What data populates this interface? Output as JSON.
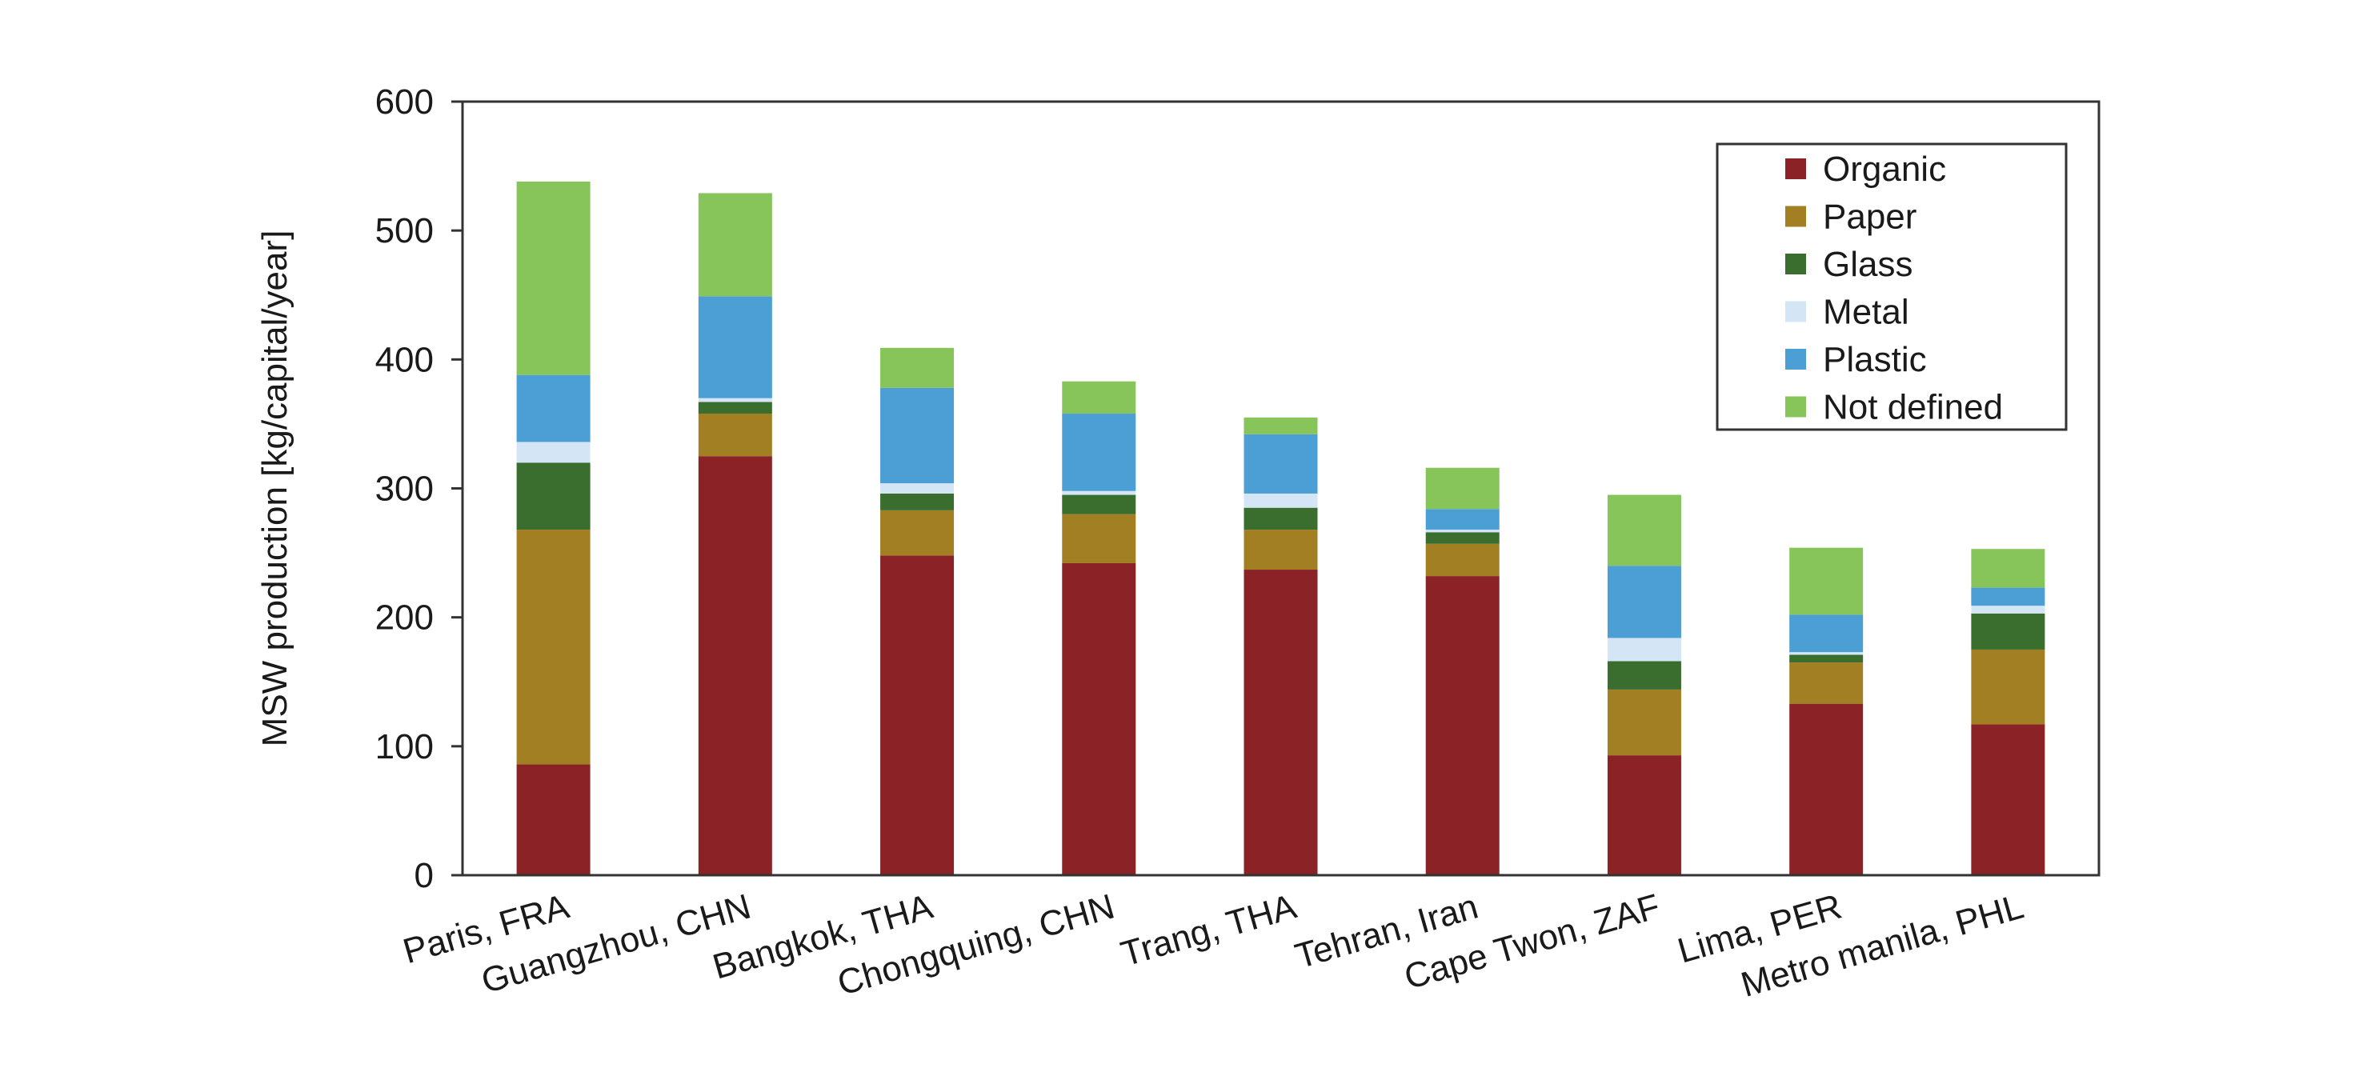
{
  "chart_data": {
    "type": "bar",
    "stacked": true,
    "title": "",
    "xlabel": "",
    "ylabel": "MSW production [kg/capital/year]",
    "ylim": [
      0,
      600
    ],
    "yticks": [
      0,
      100,
      200,
      300,
      400,
      500,
      600
    ],
    "grid": false,
    "legend_position": "top-right",
    "categories": [
      "Paris, FRA",
      "Guangzhou, CHN",
      "Bangkok, THA",
      "Chongquing, CHN",
      "Trang, THA",
      "Tehran, Iran",
      "Cape Twon, ZAF",
      "Lima, PER",
      "Metro manila, PHL"
    ],
    "series": [
      {
        "name": "Organic",
        "color": "#8b2226",
        "values": [
          86,
          325,
          248,
          242,
          237,
          232,
          93,
          133,
          117
        ]
      },
      {
        "name": "Paper",
        "color": "#a37f24",
        "values": [
          182,
          33,
          35,
          38,
          31,
          25,
          51,
          32,
          58
        ]
      },
      {
        "name": "Glass",
        "color": "#3a6e2f",
        "values": [
          52,
          9,
          13,
          15,
          17,
          9,
          22,
          6,
          28
        ]
      },
      {
        "name": "Metal",
        "color": "#d4e6f5",
        "values": [
          16,
          3,
          8,
          3,
          11,
          2,
          18,
          2,
          6
        ]
      },
      {
        "name": "Plastic",
        "color": "#4b9fd4",
        "values": [
          52,
          79,
          74,
          60,
          46,
          16,
          56,
          29,
          14
        ]
      },
      {
        "name": "Not defined",
        "color": "#87c45a",
        "values": [
          150,
          80,
          31,
          25,
          13,
          32,
          55,
          52,
          30
        ]
      }
    ]
  }
}
